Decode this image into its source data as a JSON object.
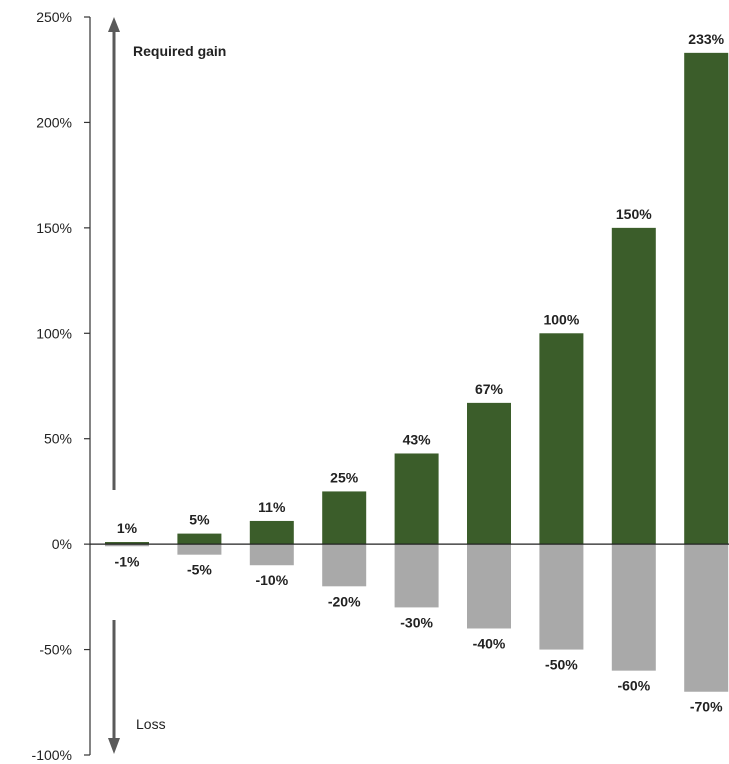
{
  "chart_data": {
    "type": "bar",
    "ylim": [
      -100,
      250
    ],
    "yticks": [
      250,
      200,
      150,
      100,
      50,
      0,
      -50,
      -100
    ],
    "ytick_labels": [
      "250%",
      "200%",
      "150%",
      "100%",
      "50%",
      "0%",
      "-50%",
      "-100%"
    ],
    "series": [
      {
        "values": [
          1,
          5,
          11,
          25,
          43,
          67,
          100,
          150,
          233
        ],
        "labels": [
          "1%",
          "5%",
          "11%",
          "25%",
          "43%",
          "67%",
          "100%",
          "150%",
          "233%"
        ]
      },
      {
        "values": [
          -1,
          -5,
          -10,
          -20,
          -30,
          -40,
          -50,
          -60,
          -70
        ],
        "labels": [
          "-1%",
          "-5%",
          "-10%",
          "-20%",
          "-30%",
          "-40%",
          "-50%",
          "-60%",
          "-70%"
        ]
      }
    ],
    "annotations": {
      "up_arrow": "Required gain",
      "down_arrow": "Loss"
    },
    "colors": {
      "gain": "#3b5d2a",
      "loss": "#a9a9a9",
      "axis": "#333333",
      "arrow": "#5a5a5a"
    },
    "grid": false
  }
}
